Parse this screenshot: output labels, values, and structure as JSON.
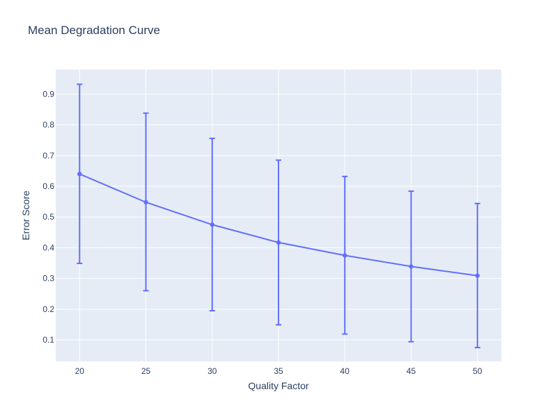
{
  "chart_data": {
    "type": "line",
    "title": "Mean Degradation Curve",
    "xlabel": "Quality Factor",
    "ylabel": "Error Score",
    "x": [
      20,
      25,
      30,
      35,
      40,
      45,
      50
    ],
    "series": [
      {
        "values": [
          0.64,
          0.548,
          0.475,
          0.417,
          0.375,
          0.339,
          0.309
        ],
        "error_low": [
          0.349,
          0.26,
          0.195,
          0.149,
          0.119,
          0.094,
          0.075
        ],
        "error_high": [
          0.932,
          0.838,
          0.756,
          0.685,
          0.632,
          0.584,
          0.544
        ],
        "color": "#636efa"
      }
    ],
    "xlim": [
      18.2,
      51.8
    ],
    "ylim": [
      0.03,
      0.98
    ],
    "xticks": [
      20,
      25,
      30,
      35,
      40,
      45,
      50
    ],
    "yticks": [
      "0.1",
      "0.2",
      "0.3",
      "0.4",
      "0.5",
      "0.6",
      "0.7",
      "0.8",
      "0.9"
    ],
    "grid": true,
    "legend": false,
    "plot_background": "#e5ecf6",
    "grid_color": "#ffffff",
    "text_color": "#2a3f5f"
  }
}
